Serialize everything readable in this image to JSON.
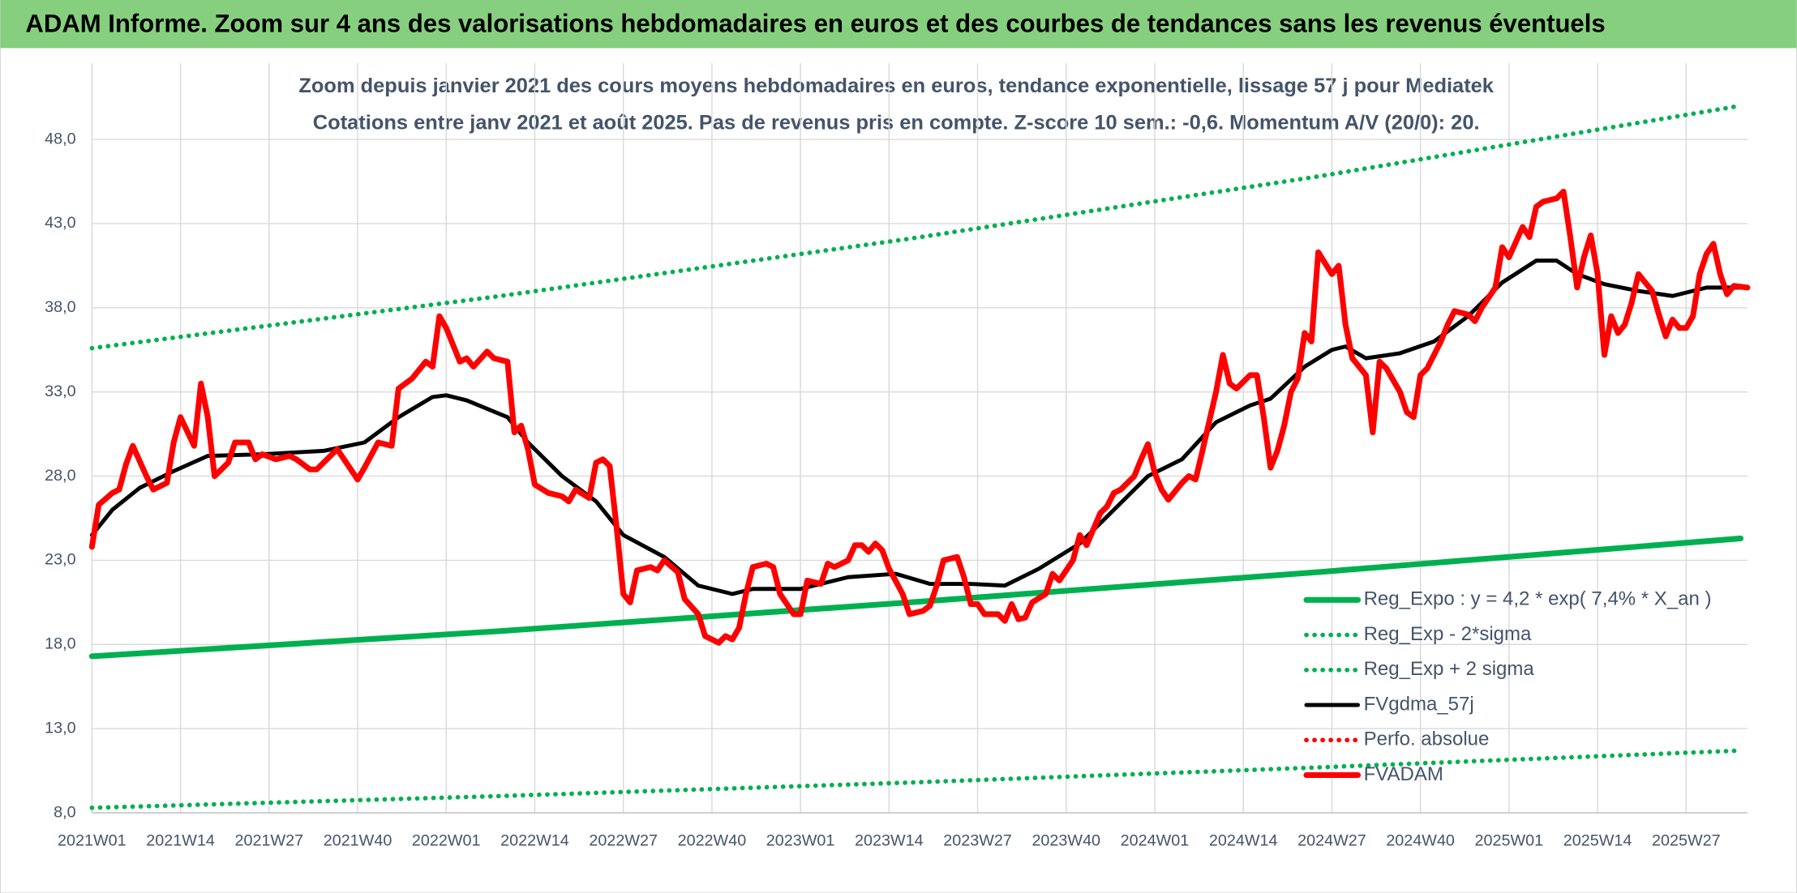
{
  "chart_data": {
    "type": "line",
    "header": "ADAM Informe. Zoom sur 4 ans des valorisations hebdomadaires en euros et des courbes de tendances sans les revenus éventuels",
    "title": "Zoom depuis janvier 2021 des cours moyens hebdomadaires en euros, tendance exponentielle, lissage 57 j pour Mediatek",
    "subtitle": "Cotations entre janv 2021 et août 2025. Pas de revenus pris en compte. Z-score 10 sem.: -0,6. Momentum A/V (20/0): 20.",
    "grid": true,
    "legend": "bottom-right",
    "xlim": [
      0,
      243
    ],
    "xticks": [
      {
        "value": 0,
        "label": "2021W01"
      },
      {
        "value": 13,
        "label": "2021W14"
      },
      {
        "value": 26,
        "label": "2021W27"
      },
      {
        "value": 39,
        "label": "2021W40"
      },
      {
        "value": 52,
        "label": "2022W01"
      },
      {
        "value": 65,
        "label": "2022W14"
      },
      {
        "value": 78,
        "label": "2022W27"
      },
      {
        "value": 91,
        "label": "2022W40"
      },
      {
        "value": 104,
        "label": "2023W01"
      },
      {
        "value": 117,
        "label": "2023W14"
      },
      {
        "value": 130,
        "label": "2023W27"
      },
      {
        "value": 143,
        "label": "2023W40"
      },
      {
        "value": 156,
        "label": "2024W01"
      },
      {
        "value": 169,
        "label": "2024W14"
      },
      {
        "value": 182,
        "label": "2024W27"
      },
      {
        "value": 195,
        "label": "2024W40"
      },
      {
        "value": 208,
        "label": "2025W01"
      },
      {
        "value": 221,
        "label": "2025W14"
      },
      {
        "value": 234,
        "label": "2025W27"
      }
    ],
    "ylim": [
      8,
      50.5
    ],
    "yticks": [
      {
        "value": 8,
        "label": "8,0"
      },
      {
        "value": 13,
        "label": "13,0"
      },
      {
        "value": 18,
        "label": "18,0"
      },
      {
        "value": 23,
        "label": "23,0"
      },
      {
        "value": 28,
        "label": "28,0"
      },
      {
        "value": 33,
        "label": "33,0"
      },
      {
        "value": 38,
        "label": "38,0"
      },
      {
        "value": 43,
        "label": "43,0"
      },
      {
        "value": 48,
        "label": "48,0"
      }
    ],
    "series": [
      {
        "name": "Reg_Expo : y = 4,2 * exp( 7,4% *  X_an )",
        "color": "#00b050",
        "style": "solid",
        "x": [
          0,
          60,
          120,
          180,
          242
        ],
        "values": [
          17.3,
          18.8,
          20.5,
          22.3,
          24.3
        ]
      },
      {
        "name": "Reg_Exp - 2*sigma",
        "color": "#00b050",
        "style": "dotted",
        "x": [
          0,
          60,
          120,
          180,
          242
        ],
        "values": [
          8.3,
          9.0,
          9.8,
          10.7,
          11.7
        ]
      },
      {
        "name": "Reg_Exp + 2 sigma",
        "color": "#00b050",
        "style": "dotted",
        "x": [
          0,
          60,
          120,
          180,
          242
        ],
        "values": [
          35.6,
          38.7,
          42.1,
          45.8,
          50.0
        ]
      },
      {
        "name": "FVgdma_57j",
        "color": "#000000",
        "style": "solid",
        "x": [
          0,
          3,
          7,
          12,
          17,
          25,
          34,
          40,
          45,
          50,
          52,
          55,
          61,
          64,
          69,
          74,
          78,
          84,
          89,
          94,
          97,
          104,
          111,
          118,
          123,
          129,
          134,
          139,
          145,
          150,
          155,
          160,
          165,
          170,
          173,
          178,
          182,
          184,
          187,
          192,
          197,
          202,
          207,
          212,
          215,
          218,
          222,
          227,
          232,
          237,
          243
        ],
        "values": [
          24.5,
          26.0,
          27.3,
          28.3,
          29.2,
          29.3,
          29.5,
          30.0,
          31.5,
          32.7,
          32.8,
          32.5,
          31.5,
          30.0,
          28.0,
          26.5,
          24.5,
          23.2,
          21.5,
          21.0,
          21.3,
          21.3,
          22.0,
          22.2,
          21.6,
          21.6,
          21.5,
          22.5,
          24.0,
          26.0,
          28.0,
          29.0,
          31.2,
          32.2,
          32.6,
          34.5,
          35.5,
          35.7,
          35.0,
          35.3,
          36.0,
          37.5,
          39.5,
          40.8,
          40.8,
          40.0,
          39.4,
          39.0,
          38.7,
          39.2,
          39.2
        ]
      },
      {
        "name": "Perfo. absolue",
        "color": "#ff0000",
        "style": "dotted",
        "x": [],
        "values": []
      },
      {
        "name": "FVADAM",
        "color": "#ff0000",
        "style": "solid",
        "x": [
          0,
          1,
          3,
          4,
          5,
          6,
          8,
          9,
          11,
          12,
          13,
          15,
          16,
          17,
          18,
          20,
          21,
          23,
          24,
          25,
          27,
          29,
          30,
          32,
          33,
          35,
          36,
          38,
          39,
          40,
          42,
          44,
          45,
          47,
          49,
          50,
          51,
          52,
          54,
          55,
          56,
          58,
          59,
          61,
          62,
          63,
          64,
          65,
          67,
          69,
          70,
          71,
          73,
          74,
          75,
          76,
          77,
          78,
          79,
          80,
          82,
          83,
          84,
          86,
          87,
          89,
          90,
          92,
          93,
          94,
          95,
          96,
          97,
          99,
          100,
          101,
          103,
          104,
          105,
          107,
          108,
          109,
          111,
          112,
          113,
          114,
          115,
          116,
          117,
          119,
          120,
          122,
          123,
          124,
          125,
          127,
          128,
          129,
          130,
          131,
          133,
          134,
          135,
          136,
          137,
          138,
          140,
          141,
          142,
          144,
          145,
          146,
          148,
          149,
          150,
          151,
          153,
          154,
          155,
          156,
          157,
          158,
          160,
          161,
          162,
          163,
          165,
          166,
          167,
          168,
          170,
          171,
          172,
          173,
          174,
          175,
          176,
          177,
          178,
          179,
          180,
          182,
          183,
          184,
          185,
          187,
          188,
          189,
          190,
          192,
          193,
          194,
          195,
          196,
          198,
          199,
          200,
          202,
          203,
          204,
          206,
          207,
          208,
          210,
          211,
          212,
          213,
          215,
          216,
          217,
          218,
          219,
          220,
          221,
          222,
          223,
          224,
          225,
          226,
          227,
          229,
          230,
          231,
          232,
          233,
          234,
          235,
          236,
          237,
          238,
          239,
          240,
          241,
          243
        ],
        "values": [
          23.8,
          26.3,
          27.0,
          27.2,
          28.7,
          29.8,
          28.0,
          27.2,
          27.6,
          30.0,
          31.5,
          29.8,
          33.5,
          31.5,
          28.0,
          28.8,
          30.0,
          30.0,
          29.0,
          29.3,
          29.0,
          29.2,
          29.0,
          28.4,
          28.4,
          29.2,
          29.6,
          28.4,
          27.8,
          28.5,
          30.0,
          29.8,
          33.2,
          33.8,
          34.8,
          34.5,
          37.5,
          36.8,
          34.8,
          35.0,
          34.5,
          35.4,
          35.0,
          34.8,
          30.6,
          31.0,
          29.6,
          27.5,
          27.0,
          26.8,
          26.5,
          27.2,
          26.7,
          28.8,
          29.0,
          28.6,
          25.0,
          21.0,
          20.5,
          22.4,
          22.6,
          22.4,
          23.0,
          22.3,
          20.7,
          19.8,
          18.5,
          18.1,
          18.5,
          18.3,
          19.0,
          21.0,
          22.6,
          22.8,
          22.6,
          21.0,
          19.8,
          19.8,
          21.8,
          21.6,
          22.8,
          22.6,
          23.0,
          23.9,
          23.9,
          23.5,
          24.0,
          23.6,
          22.5,
          21.0,
          19.8,
          20.0,
          20.3,
          21.5,
          23.0,
          23.2,
          22.0,
          20.4,
          20.4,
          19.8,
          19.8,
          19.4,
          20.4,
          19.5,
          19.6,
          20.5,
          21.0,
          22.2,
          21.8,
          23.0,
          24.5,
          23.9,
          25.8,
          26.2,
          27.0,
          27.2,
          28.0,
          29.0,
          29.9,
          28.2,
          27.2,
          26.6,
          27.6,
          28.0,
          27.8,
          29.5,
          33.0,
          35.2,
          33.5,
          33.2,
          34.0,
          34.0,
          31.5,
          28.5,
          29.5,
          31.0,
          33.0,
          33.8,
          36.5,
          36.0,
          41.3,
          40.0,
          40.5,
          37.0,
          35.0,
          34.0,
          30.6,
          34.8,
          34.4,
          33.0,
          31.8,
          31.5,
          34.0,
          34.4,
          36.0,
          37.0,
          37.8,
          37.6,
          37.2,
          38.0,
          39.2,
          41.6,
          41.0,
          42.8,
          42.2,
          44.0,
          44.3,
          44.5,
          44.9,
          42.2,
          39.2,
          41.0,
          42.3,
          40.0,
          35.2,
          37.5,
          36.5,
          37.0,
          38.3,
          40.0,
          39.0,
          37.6,
          36.3,
          37.3,
          36.8,
          36.8,
          37.5,
          40.0,
          41.2,
          41.8,
          40.0,
          38.8,
          39.3,
          39.2
        ]
      }
    ]
  }
}
